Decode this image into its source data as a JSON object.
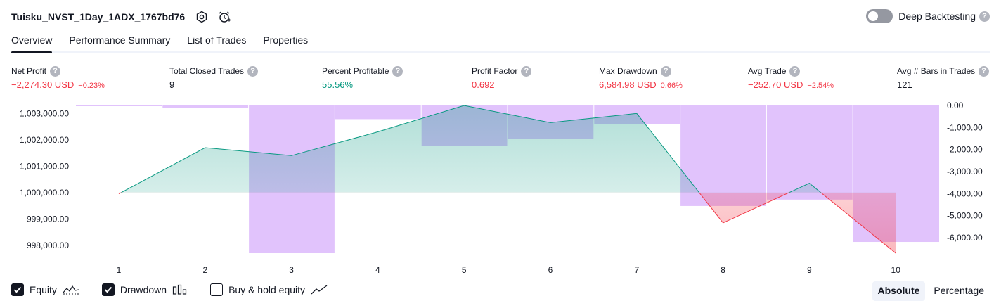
{
  "header": {
    "strategy_name": "Tuisku_NVST_1Day_1ADX_1767bd76",
    "settings_icon": "gear-icon",
    "alert_icon": "alarm-clock-plus-icon"
  },
  "deep_backtesting": {
    "label": "Deep Backtesting",
    "enabled": false,
    "help_icon": "help-icon"
  },
  "tabs": [
    {
      "label": "Overview",
      "active": true
    },
    {
      "label": "Performance Summary",
      "active": false
    },
    {
      "label": "List of Trades",
      "active": false
    },
    {
      "label": "Properties",
      "active": false
    }
  ],
  "metrics": [
    {
      "label": "Net Profit",
      "value": "−2,274.30 USD",
      "pct": "−0.23%",
      "tone": "neg"
    },
    {
      "label": "Total Closed Trades",
      "value": "9",
      "pct": "",
      "tone": "neu"
    },
    {
      "label": "Percent Profitable",
      "value": "55.56%",
      "pct": "",
      "tone": "pos"
    },
    {
      "label": "Profit Factor",
      "value": "0.692",
      "pct": "",
      "tone": "neg"
    },
    {
      "label": "Max Drawdown",
      "value": "6,584.98 USD",
      "pct": "0.66%",
      "tone": "neg"
    },
    {
      "label": "Avg Trade",
      "value": "−252.70 USD",
      "pct": "−2.54%",
      "tone": "neg"
    },
    {
      "label": "Avg # Bars in Trades",
      "value": "121",
      "pct": "",
      "tone": "neu"
    }
  ],
  "chart_data": {
    "type": "line",
    "x": [
      1,
      2,
      3,
      4,
      5,
      6,
      7,
      8,
      9,
      10
    ],
    "x_tick_labels": [
      "1",
      "2",
      "3",
      "4",
      "5",
      "6",
      "7",
      "8",
      "9",
      "10"
    ],
    "series": [
      {
        "name": "Equity",
        "type": "area",
        "values": [
          999950,
          1001700,
          1001400,
          1002300,
          1003300,
          1002650,
          1003000,
          998850,
          1000350,
          997700
        ]
      },
      {
        "name": "Drawdown",
        "type": "bar",
        "axis": "right",
        "values": [
          -30,
          -110,
          -6700,
          -620,
          -1850,
          -1500,
          -860,
          -4560,
          -4270,
          -6190
        ]
      }
    ],
    "equity_baseline": 1000000,
    "y_left": {
      "ticks": [
        1003000,
        1002000,
        1001000,
        1000000,
        999000,
        998000
      ],
      "tick_labels": [
        "1,003,000.00",
        "1,002,000.00",
        "1,001,000.00",
        "1,000,000.00",
        "999,000.00",
        "998,000.00"
      ],
      "range": [
        997700,
        1003300
      ]
    },
    "y_right": {
      "ticks": [
        0,
        -1000,
        -2000,
        -3000,
        -4000,
        -5000,
        -6000
      ],
      "tick_labels": [
        "0.00",
        "-1,000.00",
        "-2,000.00",
        "-3,000.00",
        "-4,000.00",
        "-5,000.00",
        "-6,000.00"
      ],
      "range": [
        -6700,
        0
      ]
    },
    "colors": {
      "equity_up": "#089981",
      "equity_down": "#f23645",
      "drawdown": "#e1c3fc"
    }
  },
  "legend": [
    {
      "label": "Equity",
      "checked": true,
      "icon": "equity-line-icon"
    },
    {
      "label": "Drawdown",
      "checked": true,
      "icon": "drawdown-bars-icon"
    },
    {
      "label": "Buy & hold equity",
      "checked": false,
      "icon": "buy-hold-line-icon"
    }
  ],
  "display_modes": [
    {
      "label": "Absolute",
      "active": true
    },
    {
      "label": "Percentage",
      "active": false
    }
  ]
}
